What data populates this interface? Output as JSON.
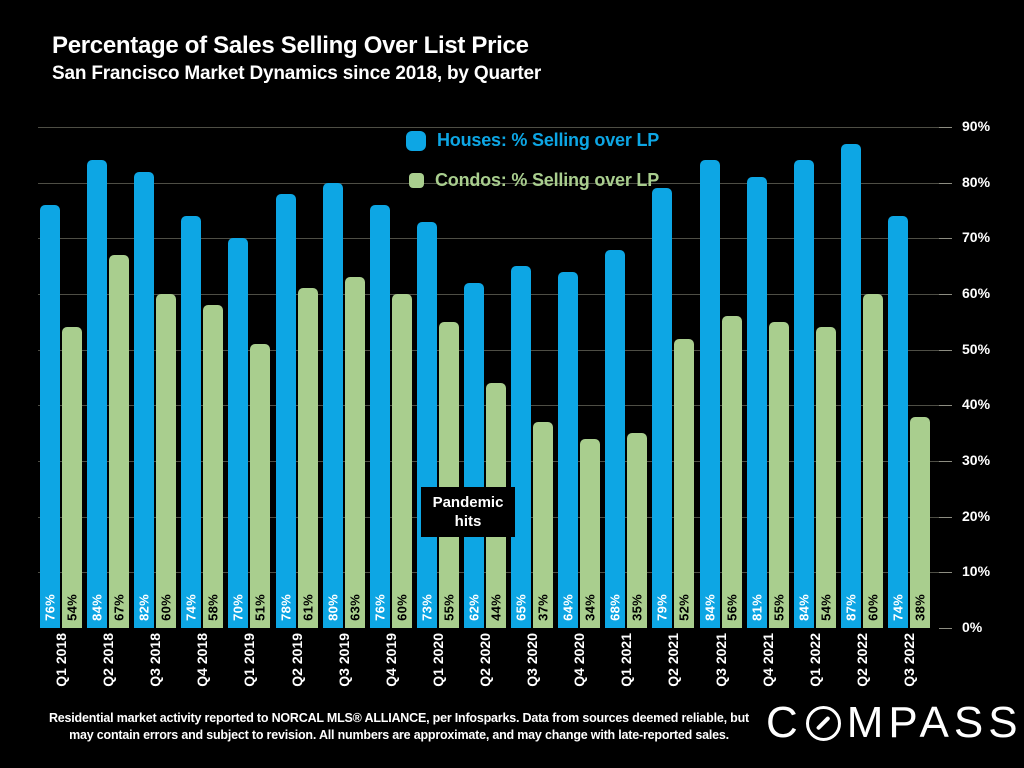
{
  "chart_data": {
    "type": "bar",
    "title": "Percentage of Sales Selling Over List Price",
    "subtitle": "San Francisco Market Dynamics since 2018, by Quarter",
    "categories": [
      "Q1 2018",
      "Q2 2018",
      "Q3 2018",
      "Q4 2018",
      "Q1 2019",
      "Q2 2019",
      "Q3 2019",
      "Q4 2019",
      "Q1 2020",
      "Q2 2020",
      "Q3 2020",
      "Q4 2020",
      "Q1 2021",
      "Q2 2021",
      "Q3 2021",
      "Q4 2021",
      "Q1 2022",
      "Q2 2022",
      "Q3 2022"
    ],
    "series": [
      {
        "key": "houses",
        "name": "Houses: % Selling over LP",
        "color": "#0DA6E4",
        "value_label_color": "#FFFFFF",
        "values": [
          76,
          84,
          82,
          74,
          70,
          78,
          80,
          76,
          73,
          62,
          65,
          64,
          68,
          79,
          84,
          81,
          84,
          87,
          74
        ]
      },
      {
        "key": "condos",
        "name": "Condos: % Selling over LP",
        "color": "#A9CE8E",
        "value_label_color": "#000000",
        "values": [
          54,
          67,
          60,
          58,
          51,
          61,
          63,
          60,
          55,
          44,
          37,
          34,
          35,
          52,
          56,
          55,
          54,
          60,
          38
        ]
      }
    ],
    "xlabel": "",
    "ylabel": "",
    "ylim": [
      0,
      90
    ],
    "y_ticks": [
      90,
      80,
      70,
      60,
      50,
      40,
      30,
      20,
      10,
      0
    ],
    "y_tick_suffix": "%",
    "value_label_suffix": "%",
    "grid": "horizontal",
    "legend_position": "top-center-inside",
    "annotation": {
      "line1": "Pandemic",
      "line2": "hits",
      "attached_to": "Q2 2020"
    }
  },
  "footer": {
    "line1": "Residential market activity reported to NORCAL MLS® ALLIANCE, per Infosparks. Data from sources deemed reliable, but",
    "line2": "may contain errors and subject to revision. All numbers are approximate, and may change with late-reported sales."
  },
  "brand": {
    "name": "COMPASS"
  },
  "colors": {
    "background": "#000000",
    "houses_bar": "#0DA6E4",
    "condos_bar": "#A9CE8E",
    "gridline": "#4E4E45",
    "text": "#FFFFFF"
  }
}
